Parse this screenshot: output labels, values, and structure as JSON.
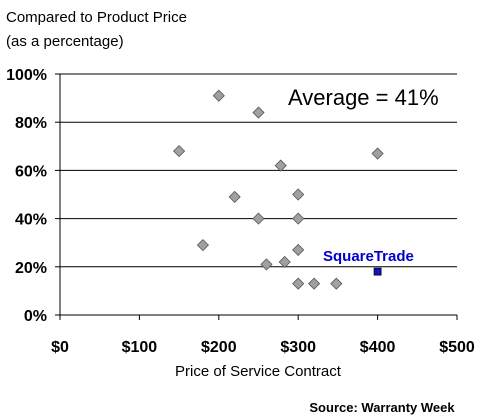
{
  "chart_data": {
    "type": "scatter",
    "ylabel": [
      "Compared to Product Price",
      "(as a percentage)"
    ],
    "xlabel": "Price of Service Contract",
    "xlim": [
      0,
      500
    ],
    "ylim": [
      0,
      100
    ],
    "x_ticks": [
      {
        "value": 0,
        "label": "$0"
      },
      {
        "value": 100,
        "label": "$100"
      },
      {
        "value": 200,
        "label": "$200"
      },
      {
        "value": 300,
        "label": "$300"
      },
      {
        "value": 400,
        "label": "$400"
      },
      {
        "value": 500,
        "label": "$500"
      }
    ],
    "y_ticks": [
      {
        "value": 0,
        "label": "0%"
      },
      {
        "value": 20,
        "label": "20%"
      },
      {
        "value": 40,
        "label": "40%"
      },
      {
        "value": 60,
        "label": "60%"
      },
      {
        "value": 80,
        "label": "80%"
      },
      {
        "value": 100,
        "label": "100%"
      }
    ],
    "grid": "horizontal",
    "annotation": "Average = 41%",
    "series": [
      {
        "marker": "diamond",
        "color": "#a0a0a0",
        "points": [
          {
            "x": 150,
            "y": 68
          },
          {
            "x": 180,
            "y": 29
          },
          {
            "x": 200,
            "y": 91
          },
          {
            "x": 220,
            "y": 49
          },
          {
            "x": 250,
            "y": 84
          },
          {
            "x": 250,
            "y": 40
          },
          {
            "x": 260,
            "y": 21
          },
          {
            "x": 278,
            "y": 62
          },
          {
            "x": 283,
            "y": 22
          },
          {
            "x": 300,
            "y": 50
          },
          {
            "x": 300,
            "y": 40
          },
          {
            "x": 300,
            "y": 27
          },
          {
            "x": 300,
            "y": 13
          },
          {
            "x": 320,
            "y": 13
          },
          {
            "x": 348,
            "y": 13
          },
          {
            "x": 400,
            "y": 67
          }
        ]
      },
      {
        "name": "SquareTrade",
        "marker": "square",
        "color": "#1010cc",
        "label_color": "#0000cc",
        "points": [
          {
            "x": 400,
            "y": 18
          }
        ]
      }
    ]
  },
  "source": "Source: Warranty Week"
}
